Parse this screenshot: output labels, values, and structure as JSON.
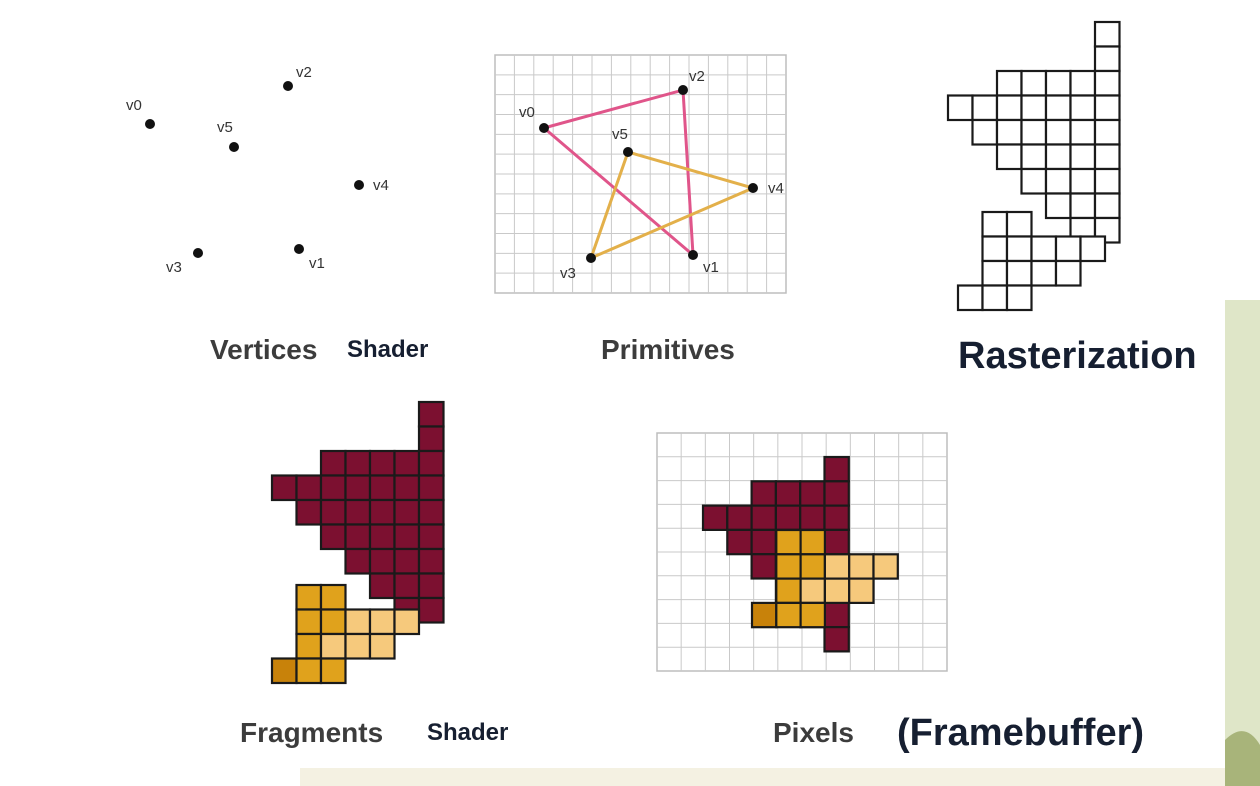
{
  "labels": {
    "vertices": "Vertices",
    "vertices_shader": "Shader",
    "primitives": "Primitives",
    "rasterization": "Rasterization",
    "fragments": "Fragments",
    "fragments_shader": "Shader",
    "pixels": "Pixels",
    "framebuffer": "(Framebuffer)"
  },
  "vertex_names": [
    "v0",
    "v1",
    "v2",
    "v3",
    "v4",
    "v5"
  ],
  "colors": {
    "triangle_edge_pink": "#e0558a",
    "triangle_edge_gold": "#e3b04a",
    "fragment_maroon": "#7c1030",
    "fragment_gold": "#e0a21c",
    "fragment_gold_light": "#f6c97c",
    "fragment_gold_dark": "#c8820a",
    "grid_line": "#c9c9c9",
    "background_accent_green": "#c4cf9a"
  }
}
